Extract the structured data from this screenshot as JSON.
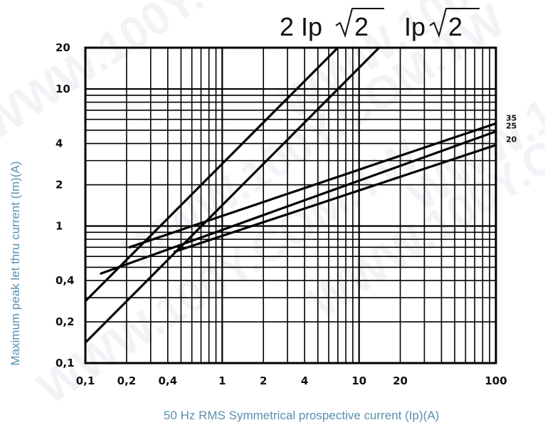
{
  "chart_data": {
    "type": "line",
    "title_parts": [
      "2 Ip",
      "2",
      "Ip",
      "2"
    ],
    "xlabel": "50 Hz RMS Symmetrical prospective current (Ip)(A)",
    "ylabel": "Maximum peak let thru current (Im)(A)",
    "x_scale": "log",
    "y_scale": "log",
    "xlim": [
      0.1,
      100
    ],
    "ylim": [
      0.1,
      20
    ],
    "x_tick_labels": [
      "0,1",
      "0,2",
      "0,4",
      "1",
      "2",
      "4",
      "10",
      "20",
      "100"
    ],
    "x_tick_values": [
      0.1,
      0.2,
      0.4,
      1,
      2,
      4,
      10,
      20,
      100
    ],
    "y_tick_labels": [
      "0,1",
      "0,2",
      "0,4",
      "1",
      "2",
      "4",
      "10",
      "20"
    ],
    "y_tick_values": [
      0.1,
      0.2,
      0.4,
      1,
      2,
      4,
      10,
      20
    ],
    "grid": true,
    "grid_x_values": [
      0.1,
      0.2,
      0.3,
      0.4,
      0.5,
      0.6,
      0.7,
      0.8,
      0.9,
      1,
      2,
      3,
      4,
      5,
      6,
      7,
      8,
      9,
      10,
      20,
      30,
      40,
      50,
      60,
      70,
      80,
      90,
      100
    ],
    "grid_y_values": [
      0.1,
      0.2,
      0.3,
      0.4,
      0.5,
      0.6,
      0.7,
      0.8,
      0.9,
      1,
      2,
      3,
      4,
      5,
      6,
      7,
      8,
      9,
      10,
      20
    ],
    "series": [
      {
        "name": "2 Ip√2",
        "x": [
          0.1,
          7
        ],
        "y": [
          0.283,
          20
        ]
      },
      {
        "name": "Ip√2",
        "x": [
          0.1,
          14
        ],
        "y": [
          0.141,
          20
        ]
      },
      {
        "name": "35",
        "x": [
          0.21,
          100
        ],
        "y": [
          0.7,
          5.6
        ]
      },
      {
        "name": "25",
        "x": [
          0.13,
          100
        ],
        "y": [
          0.45,
          4.9
        ]
      },
      {
        "name": "20",
        "x": [
          0.45,
          100
        ],
        "y": [
          0.65,
          3.9
        ]
      }
    ]
  },
  "watermarks": [
    "WWW.100Y.COM.TW",
    "WWW.100Y.COM.TW",
    "WWW.100Y.COM.TW",
    "WWW.100Y.COM.TW",
    "WWW.100Y.COM.TW",
    "WWW.100Y.COM.TW"
  ]
}
